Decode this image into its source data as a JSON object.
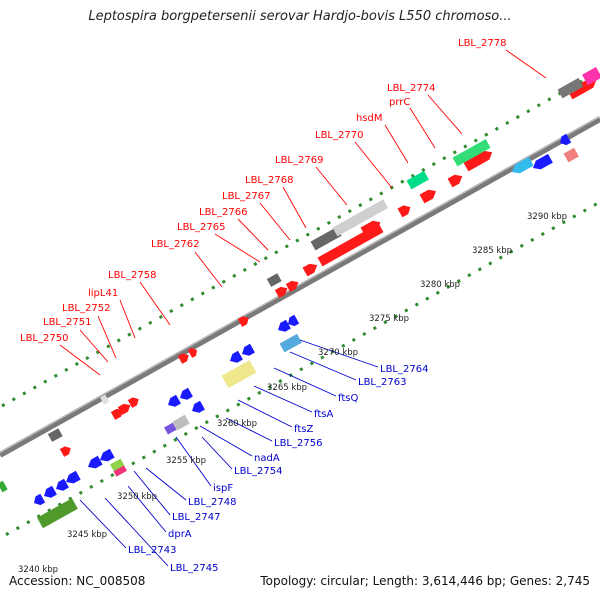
{
  "title": "Leptospira borgpetersenii serovar Hardjo-bovis L550 chromoso...",
  "footer": {
    "accession": "Accession: NC_008508",
    "summary": "Topology: circular; Length: 3,614,446 bp; Genes: 2,745"
  },
  "colors": {
    "forward_label": "#ff0000",
    "reverse_label": "#0000cc",
    "backbone": "#7a7a7a",
    "tick": "#2e8b2e",
    "forward_feature": "#ff1a1a",
    "reverse_feature": "#1a1aff"
  },
  "scale_labels": [
    "3240 kbp",
    "3245 kbp",
    "3250 kbp",
    "3255 kbp",
    "3260 kbp",
    "3265 kbp",
    "3270 kbp",
    "3275 kbp",
    "3280 kbp",
    "3285 kbp",
    "3290 kbp"
  ],
  "forward_labels": [
    "LBL_2750",
    "LBL_2751",
    "LBL_2752",
    "lipL41",
    "LBL_2758",
    "LBL_2762",
    "LBL_2765",
    "LBL_2766",
    "LBL_2767",
    "LBL_2768",
    "LBL_2769",
    "LBL_2770",
    "hsdM",
    "prrC",
    "LBL_2774",
    "LBL_2778"
  ],
  "reverse_labels": [
    "LBL_2745",
    "LBL_2743",
    "dprA",
    "LBL_2747",
    "LBL_2748",
    "ispF",
    "LBL_2754",
    "nadA",
    "LBL_2756",
    "ftsZ",
    "ftsA",
    "ftsQ",
    "LBL_2763",
    "LBL_2764"
  ]
}
